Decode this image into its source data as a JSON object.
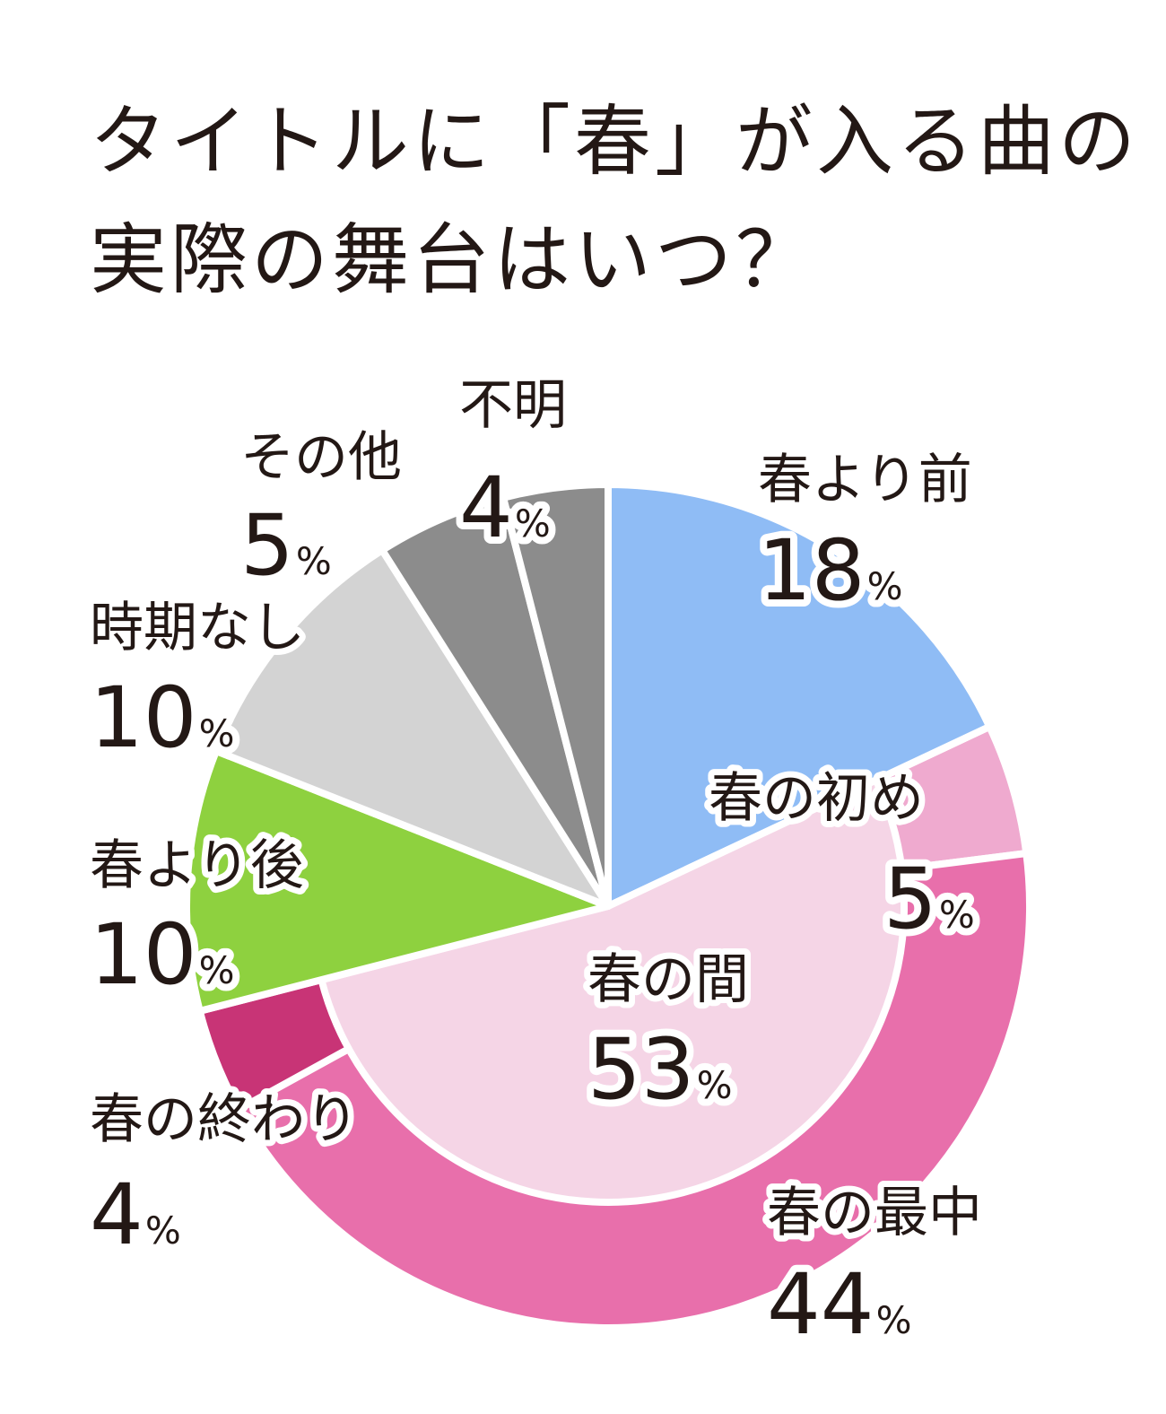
{
  "title": {
    "line1": "タイトルに「春」が入る曲の",
    "line2": "実際の舞台はいつ？"
  },
  "chart_data": {
    "type": "pie",
    "title": "タイトルに「春」が入る曲の実際の舞台はいつ？",
    "unit": "%",
    "slices": [
      {
        "label": "春より前",
        "value": 18,
        "color": "#8fbcf5"
      },
      {
        "label": "春の間",
        "value": 53,
        "color": "#f5d5e6",
        "breakdown": [
          {
            "label": "春の初め",
            "value": 5,
            "color": "#efaacf"
          },
          {
            "label": "春の最中",
            "value": 44,
            "color": "#e86fab"
          },
          {
            "label": "春の終わり",
            "value": 4,
            "color": "#c83476"
          }
        ]
      },
      {
        "label": "春より後",
        "value": 10,
        "color": "#8ed13f"
      },
      {
        "label": "時期なし",
        "value": 10,
        "color": "#d3d3d3"
      },
      {
        "label": "その他",
        "value": 5,
        "color": "#8c8c8c"
      },
      {
        "label": "不明",
        "value": 4,
        "color": "#8c8c8c"
      }
    ]
  }
}
